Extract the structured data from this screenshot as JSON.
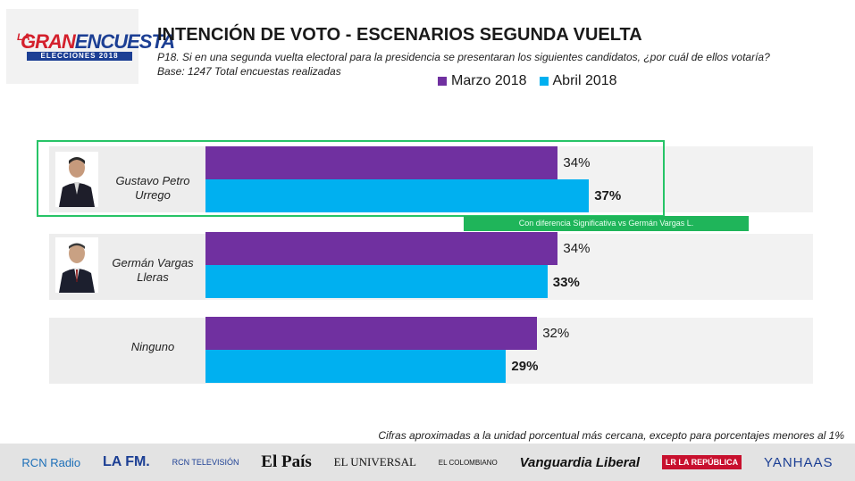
{
  "header": {
    "logo": {
      "prefix": "LA",
      "word1": "GRAN",
      "word2": "ENCUESTA",
      "sub": "ELECCIONES 2018"
    },
    "title": "INTENCIÓN DE VOTO - ESCENARIOS SEGUNDA VUELTA",
    "question": "P18. Si en una segunda vuelta electoral para la presidencia se presentaran los siguientes candidatos, ¿por cuál de ellos votaría?",
    "base": "Base: 1247 Total encuestas realizadas"
  },
  "chart_data": {
    "type": "bar",
    "orientation": "horizontal",
    "title": "INTENCIÓN DE VOTO - ESCENARIOS SEGUNDA VUELTA",
    "categories": [
      "Gustavo Petro Urrego",
      "Germán Vargas Lleras",
      "Ninguno"
    ],
    "category_lines": [
      [
        "Gustavo Petro",
        "Urrego"
      ],
      [
        "Germán Vargas",
        "Lleras"
      ],
      [
        "Ninguno"
      ]
    ],
    "series": [
      {
        "name": "Marzo 2018",
        "color": "#7030a0",
        "values": [
          34,
          34,
          32
        ],
        "labels": [
          "34%",
          "34%",
          "32%"
        ],
        "bold": false
      },
      {
        "name": "Abril 2018",
        "color": "#00b0f0",
        "values": [
          37,
          33,
          29
        ],
        "labels": [
          "37%",
          "33%",
          "29%"
        ],
        "bold": true
      }
    ],
    "unit": "%",
    "legend_position": "top",
    "annotation": "Con diferencia Significativa vs  Germán Vargas L."
  },
  "footnote": "Cifras aproximadas a la unidad porcentual más cercana, excepto para porcentajes menores al 1%",
  "sponsors": [
    "RCN Radio",
    "LA FM.",
    "RCN TELEVISIÓN",
    "El País",
    "EL UNIVERSAL",
    "EL COLOMBIANO",
    "Vanguardia Liberal",
    "LR LA REPÚBLICA",
    "YANHAAS"
  ]
}
